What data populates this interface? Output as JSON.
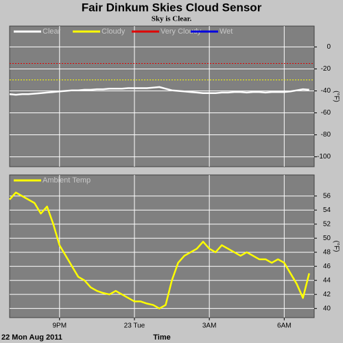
{
  "chart_data": [
    {
      "type": "line",
      "title": "Fair Dinkum Skies Cloud Sensor",
      "subtitle": "Sky is Clear.",
      "ylabel": "(°F)",
      "grid": true,
      "x": [
        19,
        19.25,
        19.5,
        19.75,
        20,
        20.25,
        20.5,
        20.75,
        21,
        21.25,
        21.5,
        21.75,
        22,
        22.25,
        22.5,
        22.75,
        23,
        23.25,
        23.5,
        23.75,
        24,
        24.25,
        24.5,
        24.75,
        25,
        25.25,
        25.5,
        25.75,
        26,
        26.25,
        26.5,
        26.75,
        27,
        27.25,
        27.5,
        27.75,
        28,
        28.25,
        28.5,
        28.75,
        29,
        29.25,
        29.5,
        29.75,
        30,
        30.25,
        30.5,
        30.75,
        31
      ],
      "xlim": [
        19,
        31.2
      ],
      "ylim": [
        -109,
        19
      ],
      "yticks": [
        0,
        -20,
        -40,
        -60,
        -80,
        -100
      ],
      "series": [
        {
          "name": "Clear",
          "color": "#ffffff",
          "values": [
            -43,
            -43.5,
            -43,
            -43,
            -42.5,
            -42,
            -41.5,
            -41,
            -40.5,
            -40,
            -39.5,
            -39.5,
            -39,
            -39,
            -38.5,
            -38.5,
            -38,
            -38,
            -38,
            -37.5,
            -37.5,
            -37.5,
            -37.5,
            -37,
            -36.5,
            -38,
            -39.5,
            -40,
            -40.5,
            -41,
            -41.5,
            -42,
            -42,
            -42,
            -41.5,
            -41.5,
            -41,
            -41,
            -41.5,
            -41,
            -41,
            -41.5,
            -41,
            -41,
            -41,
            -40.5,
            -39.5,
            -38.5,
            -39
          ]
        },
        {
          "name": "Cloudy",
          "color": "#ffff00",
          "level": -30
        },
        {
          "name": "Very Cloudy",
          "color": "#e00000",
          "level": -15
        },
        {
          "name": "Wet",
          "color": "#0000e0"
        }
      ]
    },
    {
      "type": "line",
      "ylabel": "(°F)",
      "xlabel": "Time",
      "date_label": "22 Mon Aug 2011",
      "grid": true,
      "x": [
        19,
        19.25,
        19.5,
        19.75,
        20,
        20.25,
        20.5,
        20.75,
        21,
        21.25,
        21.5,
        21.75,
        22,
        22.25,
        22.5,
        22.75,
        23,
        23.25,
        23.5,
        23.75,
        24,
        24.25,
        24.5,
        24.75,
        25,
        25.25,
        25.5,
        25.75,
        26,
        26.25,
        26.5,
        26.75,
        27,
        27.25,
        27.5,
        27.75,
        28,
        28.25,
        28.5,
        28.75,
        29,
        29.25,
        29.5,
        29.75,
        30,
        30.25,
        30.5,
        30.75,
        31
      ],
      "xlim": [
        19,
        31.2
      ],
      "ylim": [
        38.7,
        59
      ],
      "yticks": [
        56,
        54,
        52,
        50,
        48,
        46,
        44,
        42,
        40
      ],
      "xticks": [
        {
          "value": 21,
          "label": "9PM"
        },
        {
          "value": 24,
          "label": "23 Tue"
        },
        {
          "value": 27,
          "label": "3AM"
        },
        {
          "value": 30,
          "label": "6AM"
        }
      ],
      "series": [
        {
          "name": "Ambient Temp",
          "color": "#ffff00",
          "values": [
            55.5,
            56.5,
            56,
            55.5,
            55,
            53.5,
            54.5,
            52,
            49,
            47.5,
            46,
            44.5,
            44,
            43,
            42.5,
            42.2,
            42,
            42.5,
            42,
            41.5,
            41,
            41,
            40.7,
            40.5,
            40,
            40.5,
            44,
            46.5,
            47.5,
            48,
            48.5,
            49.5,
            48.5,
            48,
            49,
            48.5,
            48,
            47.5,
            48,
            47.5,
            47,
            47,
            46.5,
            47,
            46.5,
            45,
            43.5,
            41.5,
            45
          ]
        }
      ]
    }
  ]
}
